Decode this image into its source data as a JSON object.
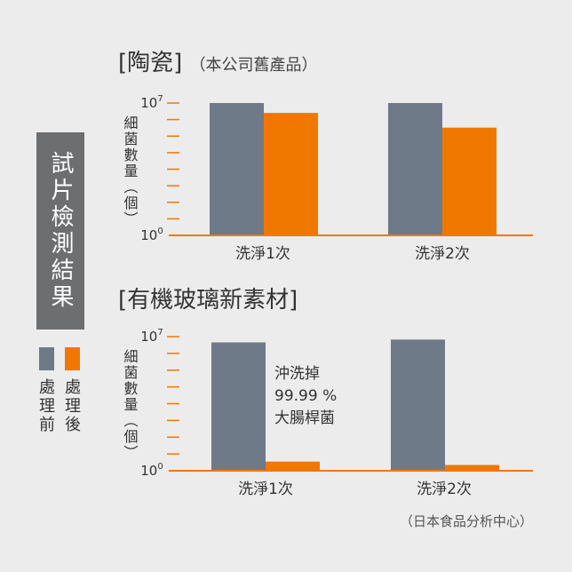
{
  "side_label": "試片檢測結果",
  "legend": [
    {
      "label": "處理前",
      "color": "#6e7a87"
    },
    {
      "label": "處理後",
      "color": "#f07800"
    }
  ],
  "source": "（日本食品分析中心）",
  "chart_data": [
    {
      "type": "bar",
      "title": "[陶瓷]",
      "subtitle": "（本公司舊產品）",
      "ylabel": "細菌數量（個）",
      "yscale": "log",
      "ylim": [
        1,
        10000000
      ],
      "ytick_labels": [
        {
          "base": "10",
          "exp": "7"
        },
        {
          "base": "10",
          "exp": "0"
        }
      ],
      "categories": [
        "洗淨1次",
        "洗淨2次"
      ],
      "series": [
        {
          "name": "處理前",
          "values": [
            10000000,
            10000000
          ]
        },
        {
          "name": "處理後",
          "values": [
            3000000,
            500000
          ]
        }
      ],
      "annotation": []
    },
    {
      "type": "bar",
      "title": "[有機玻璃新素材]",
      "subtitle": "",
      "ylabel": "細菌數量（個）",
      "yscale": "log",
      "ylim": [
        1,
        10000000
      ],
      "ytick_labels": [
        {
          "base": "10",
          "exp": "7"
        },
        {
          "base": "10",
          "exp": "0"
        }
      ],
      "categories": [
        "洗淨1次",
        "洗淨2次"
      ],
      "series": [
        {
          "name": "處理前",
          "values": [
            5000000,
            7000000
          ]
        },
        {
          "name": "處理後",
          "values": [
            3,
            2
          ]
        }
      ],
      "annotation": [
        "沖洗掉",
        "99.99 %",
        "大腸桿菌"
      ]
    }
  ]
}
